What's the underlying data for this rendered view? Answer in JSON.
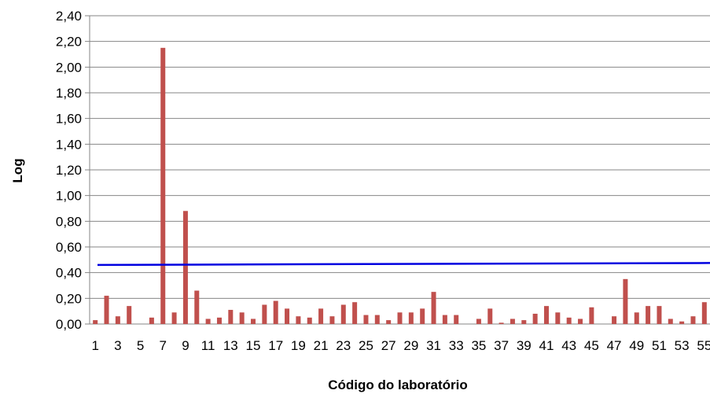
{
  "chart_data": {
    "type": "bar",
    "xlabel": "Código do laboratório",
    "ylabel": "Log",
    "ylim": [
      0,
      2.4
    ],
    "ytick_labels": [
      "0,00",
      "0,20",
      "0,40",
      "0,60",
      "0,80",
      "1,00",
      "1,20",
      "1,40",
      "1,60",
      "1,80",
      "2,00",
      "2,20",
      "2,40"
    ],
    "categories": [
      "1",
      "2",
      "3",
      "4",
      "5",
      "6",
      "7",
      "8",
      "9",
      "10",
      "11",
      "12",
      "13",
      "14",
      "15",
      "16",
      "17",
      "18",
      "19",
      "20",
      "21",
      "22",
      "23",
      "24",
      "25",
      "26",
      "27",
      "28",
      "29",
      "30",
      "31",
      "32",
      "33",
      "34",
      "35",
      "36",
      "37",
      "38",
      "39",
      "40",
      "41",
      "42",
      "43",
      "44",
      "45",
      "46",
      "47",
      "48",
      "49",
      "50",
      "51",
      "52",
      "53",
      "54",
      "55"
    ],
    "xtick_labels": [
      "1",
      "3",
      "5",
      "7",
      "9",
      "11",
      "13",
      "15",
      "17",
      "19",
      "21",
      "23",
      "25",
      "27",
      "29",
      "31",
      "33",
      "35",
      "37",
      "39",
      "41",
      "43",
      "45",
      "47",
      "49",
      "51",
      "53",
      "55"
    ],
    "values": [
      0.03,
      0.22,
      0.06,
      0.14,
      0,
      0.05,
      2.15,
      0.09,
      0.88,
      0.26,
      0.04,
      0.05,
      0.11,
      0.09,
      0.04,
      0.15,
      0.18,
      0.12,
      0.06,
      0.05,
      0.12,
      0.06,
      0.15,
      0.17,
      0.07,
      0.07,
      0.03,
      0.09,
      0.09,
      0.12,
      0.25,
      0.07,
      0.07,
      0,
      0.04,
      0.12,
      0.01,
      0.04,
      0.03,
      0.08,
      0.14,
      0.09,
      0.05,
      0.04,
      0.13,
      0,
      0.06,
      0.35,
      0.09,
      0.14,
      0.14,
      0.04,
      0.02,
      0.06,
      0.17
    ],
    "reference_line": {
      "start": 0.46,
      "end": 0.475
    },
    "grid": true,
    "colors": {
      "bar": "#C0504D",
      "reference_line": "#0000E0",
      "grid": "#868686"
    }
  }
}
